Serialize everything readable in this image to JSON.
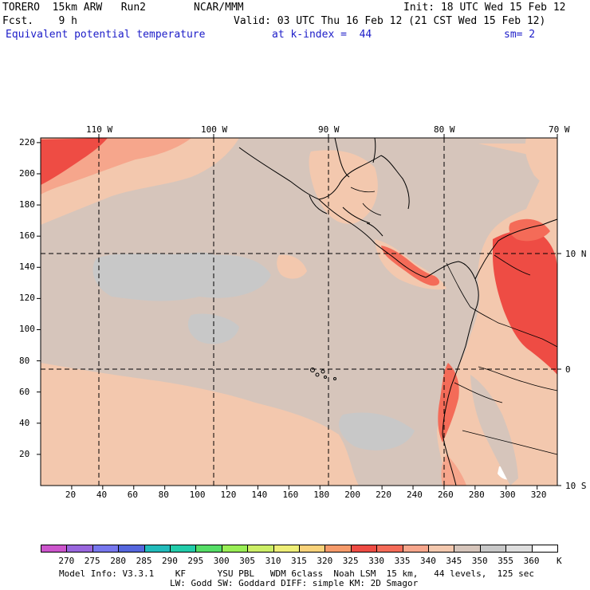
{
  "header": {
    "model": "TORERO  15km ARW   Run2",
    "org": "NCAR/MMM",
    "init": "Init: 18 UTC Wed 15 Feb 12",
    "forecast": "Fcst.    9 h",
    "valid": "Valid: 03 UTC Thu 16 Feb 12 (21 CST Wed 15 Feb 12)",
    "field": "Equivalent potential temperature",
    "level": "at k-index =  44",
    "smoothing": "sm= 2"
  },
  "map": {
    "lon_labels": [
      "110 W",
      "100 W",
      "90 W",
      "80 W",
      "70 W"
    ],
    "lat_labels": [
      "10 N",
      "0",
      "10 S"
    ],
    "y_ticks": [
      "220",
      "200",
      "180",
      "160",
      "140",
      "120",
      "100",
      "80",
      "60",
      "40",
      "20"
    ],
    "x_ticks": [
      "20",
      "40",
      "60",
      "80",
      "100",
      "120",
      "140",
      "160",
      "180",
      "200",
      "220",
      "240",
      "260",
      "280",
      "300",
      "320"
    ]
  },
  "colorbar": {
    "unit": "K",
    "labels": [
      "270",
      "275",
      "280",
      "285",
      "290",
      "295",
      "300",
      "305",
      "310",
      "315",
      "320",
      "325",
      "330",
      "335",
      "340",
      "345",
      "350",
      "355",
      "360"
    ],
    "colors": [
      "#cc55cc",
      "#9966dd",
      "#7777ee",
      "#5566dd",
      "#22bbbb",
      "#22ccaa",
      "#55dd66",
      "#99ee55",
      "#ccee66",
      "#eeee77",
      "#f8d27a",
      "#f59a6a",
      "#ee4c44",
      "#f46b58",
      "#f6a68c",
      "#f3c8ae",
      "#d6c5bb",
      "#c8c8c8",
      "#dedede",
      "#ffffff"
    ]
  },
  "footer": {
    "line1": "Model Info: V3.3.1    KF      YSU PBL   WDM 6class  Noah LSM  15 km,   44 levels,  125 sec",
    "line2": "LW: Godd SW: Goddard DIFF: simple KM: 2D Smagor"
  }
}
